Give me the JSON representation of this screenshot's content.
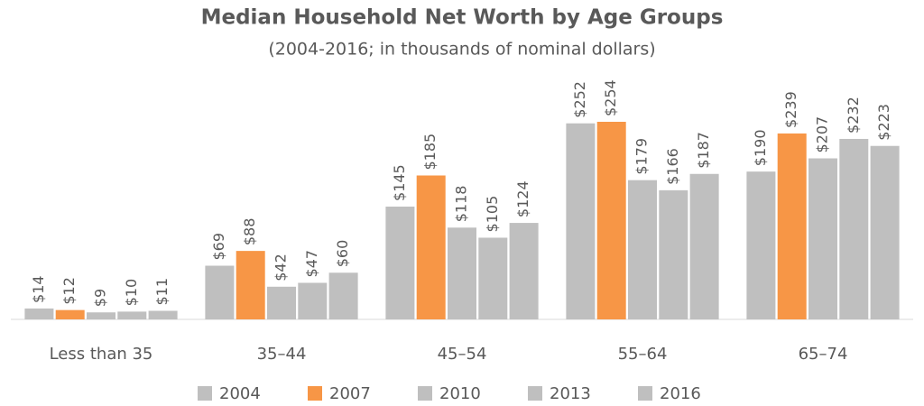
{
  "chart_data": {
    "type": "bar",
    "title": "Median Household Net Worth by Age Groups",
    "subtitle": "(2004-2016; in thousands of nominal dollars)",
    "categories": [
      "Less than 35",
      "35–44",
      "45–54",
      "55–64",
      "65–74"
    ],
    "series": [
      {
        "name": "2004",
        "color": "#bfbfbf",
        "values": [
          14,
          69,
          145,
          252,
          190
        ],
        "value_labels": [
          "$14",
          "$69",
          "$145",
          "$252",
          "$190"
        ]
      },
      {
        "name": "2007",
        "color": "#f79646",
        "values": [
          12,
          88,
          185,
          254,
          239
        ],
        "value_labels": [
          "$12",
          "$88",
          "$185",
          "$254",
          "$239"
        ]
      },
      {
        "name": "2010",
        "color": "#bfbfbf",
        "values": [
          9,
          42,
          118,
          179,
          207
        ],
        "value_labels": [
          "$9",
          "$42",
          "$118",
          "$179",
          "$207"
        ]
      },
      {
        "name": "2013",
        "color": "#bfbfbf",
        "values": [
          10,
          47,
          105,
          166,
          232
        ],
        "value_labels": [
          "$10",
          "$47",
          "$105",
          "$166",
          "$232"
        ]
      },
      {
        "name": "2016",
        "color": "#bfbfbf",
        "values": [
          11,
          60,
          124,
          187,
          223
        ],
        "value_labels": [
          "$11",
          "$60",
          "$124",
          "$187",
          "$223"
        ]
      }
    ],
    "legend": "bottom"
  }
}
